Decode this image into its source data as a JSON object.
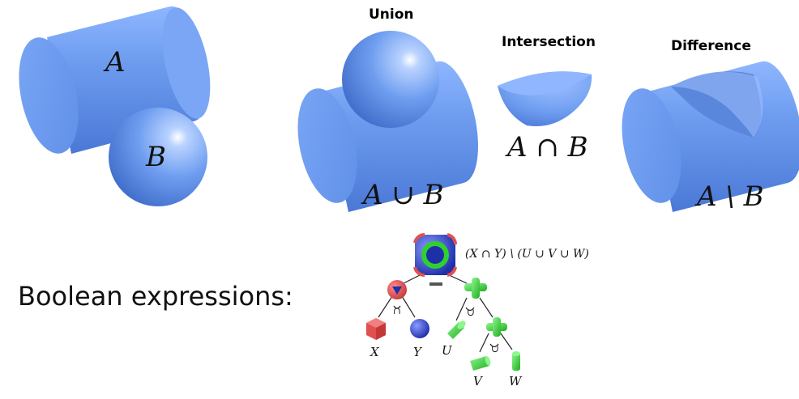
{
  "colors": {
    "solid_blue": "#6f9ef0",
    "solid_blue_dark": "#4a78d6",
    "solid_blue_light": "#a9c7ff",
    "tree_red": "#e05050",
    "tree_blue": "#1f2fa8",
    "tree_green": "#2fd12f",
    "edge": "#222222"
  },
  "primitives": {
    "cylinder_label": "A",
    "sphere_label": "B"
  },
  "operations": {
    "union": {
      "title": "Union",
      "formula": "A ∪ B"
    },
    "intersection": {
      "title": "Intersection",
      "formula": "A ∩ B"
    },
    "difference": {
      "title": "Difference",
      "formula": "A \\ B"
    }
  },
  "boolean": {
    "label": "Boolean expressions:",
    "root_expression": "(X ∩ Y) \\ (U ∪ V ∪ W)",
    "root_op": "−",
    "left_op": "∩",
    "right_op": "∪",
    "inner_op": "∪",
    "leaves": {
      "x": "X",
      "y": "Y",
      "u": "U",
      "v": "V",
      "w": "W"
    }
  }
}
